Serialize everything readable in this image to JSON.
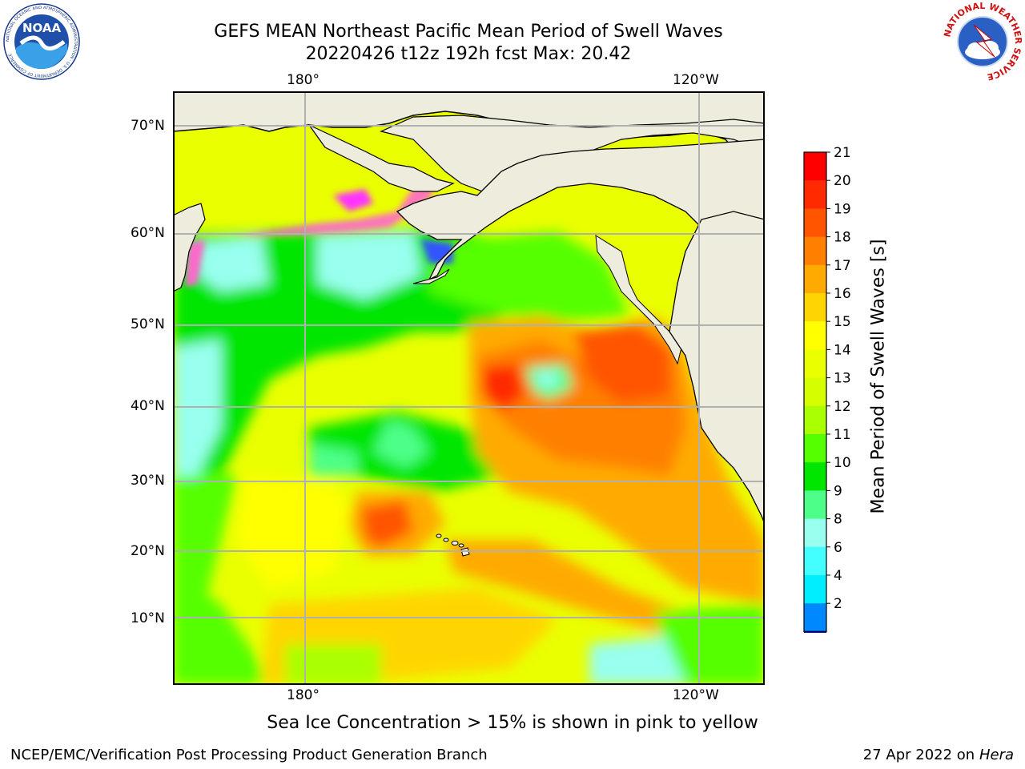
{
  "header": {
    "title_line1": "GEFS MEAN Northeast Pacific Mean Period of Swell Waves",
    "title_line2": "20220426 t12z 192h fcst   Max: 20.42"
  },
  "logos": {
    "left": {
      "name": "noaa-logo",
      "text": "NOAA",
      "ring_text": "NATIONAL OCEANIC AND ATMOSPHERIC ADMINISTRATION · U.S. DEPARTMENT OF COMMERCE"
    },
    "right": {
      "name": "nws-logo",
      "ring_text": "NATIONAL WEATHER SERVICE"
    }
  },
  "map": {
    "longitude_labels_top": [
      "180°",
      "120°W"
    ],
    "longitude_labels_bottom": [
      "180°",
      "120°W"
    ],
    "latitude_labels": [
      "70°N",
      "60°N",
      "50°N",
      "40°N",
      "30°N",
      "20°N",
      "10°N"
    ],
    "colors": {
      "land": "#eeecdc",
      "grid": "#b0b0b0"
    }
  },
  "colorbar": {
    "title": "Mean Period of Swell Waves [s]",
    "tick_labels": [
      "21",
      "20",
      "19",
      "18",
      "17",
      "16",
      "15",
      "14",
      "13",
      "12",
      "11",
      "10",
      "9",
      "8",
      "6",
      "4",
      "2"
    ],
    "colors": [
      "#ff0000",
      "#ff2a00",
      "#ff5500",
      "#ff8000",
      "#ffaa00",
      "#ffd500",
      "#ffff00",
      "#eaff00",
      "#d5ff00",
      "#aaff00",
      "#55ff00",
      "#00e600",
      "#4dff88",
      "#99ffee",
      "#44ffff",
      "#00eeff",
      "#0088ff"
    ],
    "extend_color": "#0000ff"
  },
  "note": "Sea Ice Concentration > 15% is shown in pink to yellow",
  "footer": {
    "left": "NCEP/EMC/Verification Post Processing Product Generation Branch",
    "right_prefix": "27 Apr 2022 on ",
    "right_host": "Hera"
  }
}
